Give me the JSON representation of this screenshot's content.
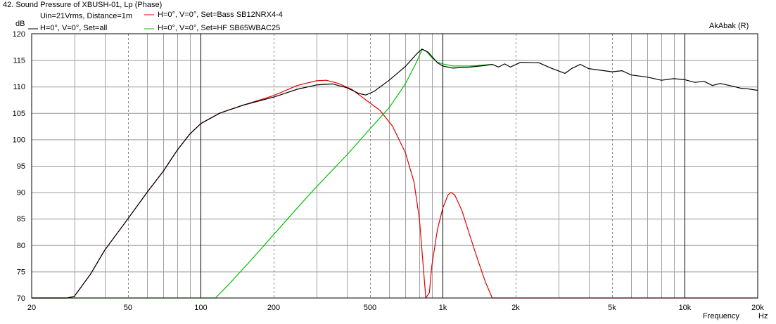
{
  "window": {
    "title": "42. Sound Pressure of XBUSH-01, Lp (Phase)",
    "watermark": "AkAbak (R)",
    "measurement": "Uin=21Vrms, Distance=1m"
  },
  "chart_data": {
    "type": "line",
    "title": "42. Sound Pressure of XBUSH-01, Lp (Phase)",
    "xlabel": "Frequency",
    "xunit": "Hz",
    "ylabel": "dB",
    "xscale": "log",
    "xlim": [
      20,
      20000
    ],
    "ylim": [
      70,
      120
    ],
    "grid": true,
    "x_tick_labels": [
      "20",
      "50",
      "100",
      "200",
      "500",
      "1k",
      "2k",
      "5k",
      "10k",
      "20k"
    ],
    "x_tick_values": [
      20,
      50,
      100,
      200,
      500,
      1000,
      2000,
      5000,
      10000,
      20000
    ],
    "y_ticks": [
      70,
      75,
      80,
      85,
      90,
      95,
      100,
      105,
      110,
      115,
      120
    ],
    "legend": {
      "left": {
        "measurement": "Uin=21Vrms, Distance=1m"
      }
    },
    "series": [
      {
        "name": "H=0°, V=0°, Set=all",
        "color": "#000000",
        "points": [
          [
            20,
            70
          ],
          [
            28,
            70
          ],
          [
            30,
            70.3
          ],
          [
            35,
            74.5
          ],
          [
            40,
            79
          ],
          [
            50,
            85
          ],
          [
            60,
            90
          ],
          [
            70,
            94
          ],
          [
            80,
            98
          ],
          [
            90,
            101
          ],
          [
            100,
            103
          ],
          [
            120,
            105
          ],
          [
            150,
            106.5
          ],
          [
            200,
            108
          ],
          [
            250,
            109.5
          ],
          [
            300,
            110.3
          ],
          [
            350,
            110.5
          ],
          [
            400,
            109.8
          ],
          [
            450,
            108.7
          ],
          [
            480,
            108.4
          ],
          [
            520,
            109.1
          ],
          [
            600,
            111.2
          ],
          [
            700,
            113.8
          ],
          [
            780,
            116.2
          ],
          [
            820,
            117.1
          ],
          [
            870,
            116.5
          ],
          [
            950,
            114.5
          ],
          [
            1000,
            113.9
          ],
          [
            1100,
            113.5
          ],
          [
            1300,
            113.7
          ],
          [
            1500,
            114
          ],
          [
            1600,
            114.2
          ],
          [
            1700,
            113.7
          ],
          [
            1800,
            114.3
          ],
          [
            1900,
            113.7
          ],
          [
            2100,
            114.6
          ],
          [
            2500,
            114.5
          ],
          [
            2800,
            113.5
          ],
          [
            3200,
            112.5
          ],
          [
            3400,
            113.4
          ],
          [
            3700,
            114.2
          ],
          [
            4000,
            113.4
          ],
          [
            5000,
            112.8
          ],
          [
            5500,
            113
          ],
          [
            6000,
            112.2
          ],
          [
            7000,
            111.8
          ],
          [
            8000,
            111.2
          ],
          [
            9000,
            111.5
          ],
          [
            10000,
            111.3
          ],
          [
            11000,
            110.8
          ],
          [
            12000,
            111
          ],
          [
            13000,
            110.2
          ],
          [
            14000,
            110.6
          ],
          [
            16000,
            110
          ],
          [
            17000,
            109.7
          ],
          [
            18000,
            109.6
          ],
          [
            20000,
            109.3
          ]
        ]
      },
      {
        "name": "H=0°, V=0°, Set=Bass SB12NRX4-4",
        "color": "#e00000",
        "points": [
          [
            20,
            70
          ],
          [
            28,
            70
          ],
          [
            30,
            70.3
          ],
          [
            35,
            74.5
          ],
          [
            40,
            79
          ],
          [
            50,
            85
          ],
          [
            60,
            90
          ],
          [
            70,
            94
          ],
          [
            80,
            98
          ],
          [
            90,
            101
          ],
          [
            100,
            103
          ],
          [
            120,
            105
          ],
          [
            150,
            106.5
          ],
          [
            200,
            108.3
          ],
          [
            250,
            110.2
          ],
          [
            300,
            111.1
          ],
          [
            330,
            111.2
          ],
          [
            370,
            110.6
          ],
          [
            420,
            109.5
          ],
          [
            480,
            107.5
          ],
          [
            550,
            105.5
          ],
          [
            620,
            102.5
          ],
          [
            700,
            97.5
          ],
          [
            760,
            92
          ],
          [
            800,
            85
          ],
          [
            830,
            76
          ],
          [
            850,
            70
          ],
          [
            880,
            71
          ],
          [
            900,
            76
          ],
          [
            950,
            83
          ],
          [
            1000,
            87
          ],
          [
            1050,
            89.5
          ],
          [
            1080,
            90
          ],
          [
            1120,
            89.5
          ],
          [
            1200,
            86.5
          ],
          [
            1300,
            81.5
          ],
          [
            1400,
            77
          ],
          [
            1500,
            73
          ],
          [
            1600,
            70
          ],
          [
            20000,
            70
          ]
        ]
      },
      {
        "name": "H=0°, V=0°, Set=HF SB65WBAC25",
        "color": "#00c000",
        "points": [
          [
            20,
            70
          ],
          [
            115,
            70
          ],
          [
            130,
            72.5
          ],
          [
            160,
            77
          ],
          [
            200,
            82
          ],
          [
            250,
            87
          ],
          [
            300,
            91
          ],
          [
            400,
            97
          ],
          [
            500,
            102
          ],
          [
            600,
            106
          ],
          [
            700,
            110.5
          ],
          [
            780,
            114.7
          ],
          [
            820,
            117
          ],
          [
            850,
            116.8
          ],
          [
            900,
            115.5
          ],
          [
            950,
            114.6
          ],
          [
            1000,
            114.3
          ],
          [
            1100,
            113.9
          ],
          [
            1300,
            113.9
          ],
          [
            1600,
            114.2
          ]
        ]
      }
    ]
  }
}
